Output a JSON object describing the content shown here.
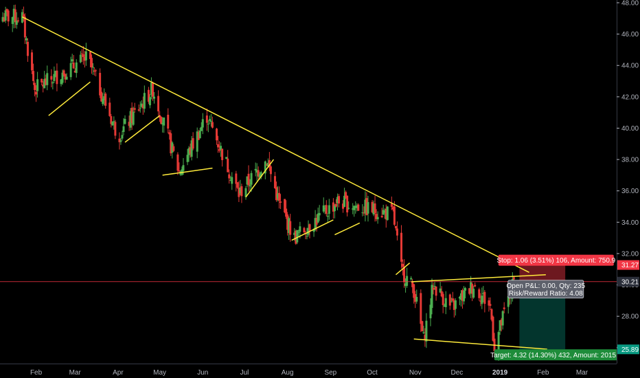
{
  "chart_data": {
    "type": "candlestick",
    "ylim": [
      25.0,
      48.0
    ],
    "y_ticks": [
      26,
      28,
      30,
      32,
      34,
      36,
      38,
      40,
      42,
      44,
      46,
      48
    ],
    "y_tick_labels": [
      "26.00",
      "28.00",
      "30.00",
      "32.00",
      "34.00",
      "36.00",
      "38.00",
      "40.00",
      "42.00",
      "44.00",
      "46.00",
      "48.00"
    ],
    "x_labels": [
      "Feb",
      "Mar",
      "Apr",
      "May",
      "Jun",
      "Jul",
      "Aug",
      "Sep",
      "Oct",
      "Nov",
      "Dec",
      "2019",
      "Feb",
      "Mar"
    ],
    "x_label_dates": [
      "2018-02-01",
      "2018-03-01",
      "2018-04-01",
      "2018-05-01",
      "2018-06-01",
      "2018-07-01",
      "2018-08-01",
      "2018-09-01",
      "2018-10-01",
      "2018-11-01",
      "2018-12-01",
      "2019-01-01",
      "2019-02-01",
      "2019-03-01"
    ],
    "x_range": [
      "2018-01-06",
      "2019-03-26"
    ],
    "colors": {
      "up": "#4caf50",
      "down": "#e53935",
      "trendline": "#ffeb3b",
      "stop": "#f23645",
      "target": "#089981"
    },
    "key_prices": [
      {
        "date": "2018-01-22",
        "price": 47.1,
        "note": "peak"
      },
      {
        "date": "2018-01-31",
        "price": 42.5
      },
      {
        "date": "2018-03-10",
        "price": 44.5
      },
      {
        "date": "2018-04-01",
        "price": 39.5
      },
      {
        "date": "2018-04-26",
        "price": 42.5
      },
      {
        "date": "2018-05-15",
        "price": 37.2
      },
      {
        "date": "2018-06-04",
        "price": 40.8
      },
      {
        "date": "2018-06-27",
        "price": 35.8
      },
      {
        "date": "2018-07-17",
        "price": 38.0
      },
      {
        "date": "2018-07-26",
        "price": 35.2
      },
      {
        "date": "2018-08-06",
        "price": 33.0
      },
      {
        "date": "2018-09-06",
        "price": 35.3
      },
      {
        "date": "2018-10-16",
        "price": 34.5
      },
      {
        "date": "2018-10-22",
        "price": 31.0
      },
      {
        "date": "2018-10-31",
        "price": 29.7
      },
      {
        "date": "2018-11-07",
        "price": 26.5
      },
      {
        "date": "2018-11-14",
        "price": 30.0
      },
      {
        "date": "2018-11-27",
        "price": 28.5
      },
      {
        "date": "2018-12-13",
        "price": 30.0
      },
      {
        "date": "2018-12-25",
        "price": 28.6
      },
      {
        "date": "2018-12-28",
        "price": 26.1
      },
      {
        "date": "2019-01-11",
        "price": 30.2
      }
    ],
    "trendlines": [
      {
        "from": {
          "date": "2018-01-22",
          "price": 47.1
        },
        "to": {
          "date": "2019-01-22",
          "price": 30.8
        }
      },
      {
        "from": {
          "date": "2018-02-10",
          "price": 40.8
        },
        "to": {
          "date": "2018-03-12",
          "price": 42.95
        }
      },
      {
        "from": {
          "date": "2018-04-06",
          "price": 39.1
        },
        "to": {
          "date": "2018-05-01",
          "price": 40.8
        }
      },
      {
        "from": {
          "date": "2018-05-03",
          "price": 37.0
        },
        "to": {
          "date": "2018-06-08",
          "price": 37.45
        }
      },
      {
        "from": {
          "date": "2018-07-02",
          "price": 35.6
        },
        "to": {
          "date": "2018-07-22",
          "price": 38.0
        }
      },
      {
        "from": {
          "date": "2018-08-04",
          "price": 32.85
        },
        "to": {
          "date": "2018-09-03",
          "price": 34.15
        }
      },
      {
        "from": {
          "date": "2018-09-04",
          "price": 33.2
        },
        "to": {
          "date": "2018-09-22",
          "price": 33.95
        }
      },
      {
        "from": {
          "date": "2018-10-18",
          "price": 30.65
        },
        "to": {
          "date": "2018-10-28",
          "price": 31.4
        }
      },
      {
        "from": {
          "date": "2018-10-29",
          "price": 30.2
        },
        "to": {
          "date": "2019-02-03",
          "price": 30.65
        }
      },
      {
        "from": {
          "date": "2018-10-31",
          "price": 26.55
        },
        "to": {
          "date": "2019-02-04",
          "price": 25.9
        }
      },
      {
        "from": {
          "date": "2019-01-30",
          "price": 29.8
        },
        "to": {
          "date": "2019-02-13",
          "price": 29.35
        }
      }
    ],
    "horizontal_line": {
      "price": 30.21,
      "color": "#f23645"
    },
    "position": {
      "start_date": "2019-01-15",
      "end_date": "2019-02-17",
      "entry": 30.21,
      "stop_price": 31.27,
      "target_price": 25.89,
      "stop_label": "Stop: 1.06 (3.51%) 106, Amount: 750.9",
      "target_label": "Target: 4.32 (14.30%) 432, Amount: 2015.2",
      "info_line1": "Open P&L: 0.00, Qty: 235",
      "info_line2": "Risk/Reward Ratio: 4.08"
    },
    "price_tags": [
      {
        "price": 31.27,
        "label": "31.27",
        "color": "#f23645"
      },
      {
        "price": 30.21,
        "label": "30.21",
        "color": "#2a2e39"
      },
      {
        "price": 25.89,
        "label": "25.89",
        "color": "#089981"
      }
    ]
  }
}
